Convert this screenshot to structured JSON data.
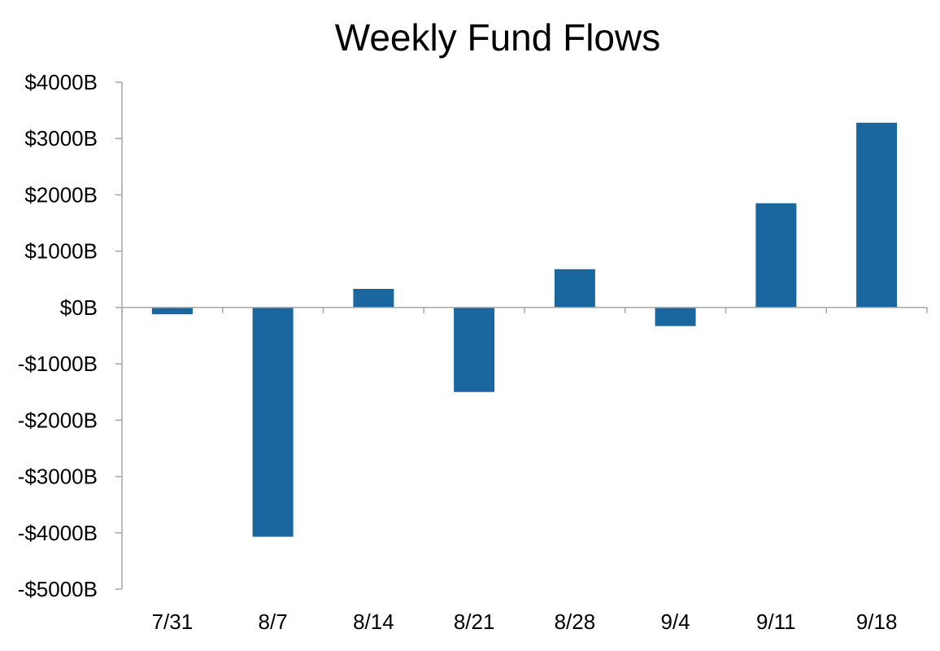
{
  "chart_data": {
    "type": "bar",
    "title": "Weekly Fund Flows",
    "xlabel": "",
    "ylabel": "",
    "categories": [
      "7/31",
      "8/7",
      "8/14",
      "8/21",
      "8/28",
      "9/4",
      "9/11",
      "9/18"
    ],
    "values": [
      -120,
      -4070,
      330,
      -1500,
      680,
      -330,
      1850,
      3280
    ],
    "ylim": [
      -5000,
      4000
    ],
    "y_ticks": [
      4000,
      3000,
      2000,
      1000,
      0,
      -1000,
      -2000,
      -3000,
      -4000,
      -5000
    ],
    "y_tick_labels": [
      "$4000B",
      "$3000B",
      "$2000B",
      "$1000B",
      "$0B",
      "-$1000B",
      "-$2000B",
      "-$3000B",
      "-$4000B",
      "-$5000B"
    ],
    "grid": false,
    "legend": "none",
    "bar_color": "#1a67a0",
    "axis_color": "#a6a6a6"
  }
}
